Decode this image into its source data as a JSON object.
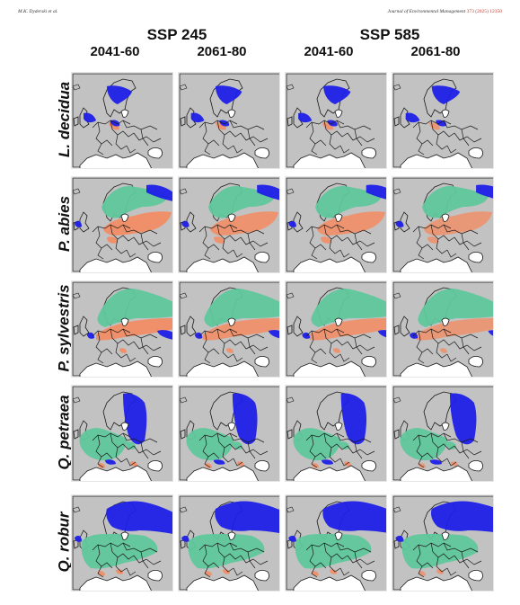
{
  "header": {
    "authors": "M.K. Dyderski et al.",
    "journal": "Journal of Environmental Management",
    "volume": "373 (2025) 12350"
  },
  "scenarios": [
    "SSP 245",
    "SSP 585"
  ],
  "periods": [
    "2041-60",
    "2061-80",
    "2041-60",
    "2061-80"
  ],
  "species": [
    "L. decidua",
    "P. abies",
    "P. sylvestris",
    "Q. petraea",
    "Q. robur"
  ],
  "legend_colors": {
    "background_land": "#c2c2c2",
    "sea": "#ffffff",
    "stable": "#5fc79c",
    "loss": "#f0906a",
    "gain": "#1f1fe8",
    "borders": "#1a1a1a"
  },
  "maps": [
    [
      "l-decidua-map",
      "l-decidua-map",
      "l-decidua-map",
      "l-decidua-map"
    ],
    [
      "p-abies-map",
      "p-abies-map",
      "p-abies-map",
      "p-abies-map"
    ],
    [
      "p-sylvestris-map",
      "p-sylvestris-map",
      "p-sylvestris-map",
      "p-sylvestris-map"
    ],
    [
      "q-petraea-map",
      "q-petraea-map",
      "q-petraea-map",
      "q-petraea-map"
    ],
    [
      "q-robur-map",
      "q-robur-map",
      "q-robur-map",
      "q-robur-map"
    ]
  ]
}
